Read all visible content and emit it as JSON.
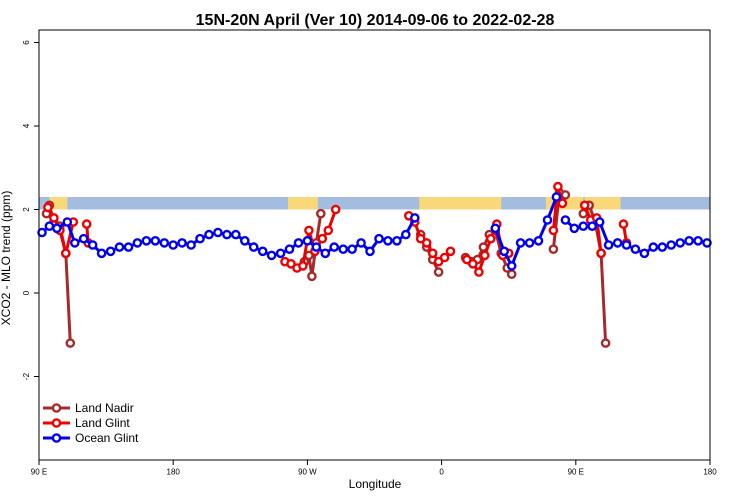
{
  "chart_data": {
    "type": "line",
    "title": "15N-20N April (Ver 10)   2014-09-06 to 2022-02-28",
    "xlabel": "Longitude",
    "ylabel": "XCO2 - MLO trend (ppm)",
    "xlim": [
      0,
      450
    ],
    "ylim": [
      -4,
      6.3
    ],
    "x_ticks": [
      {
        "value": 0,
        "label": "90 E"
      },
      {
        "value": 90,
        "label": "180"
      },
      {
        "value": 180,
        "label": "90 W"
      },
      {
        "value": 270,
        "label": "0"
      },
      {
        "value": 360,
        "label": "90 E"
      },
      {
        "value": 450,
        "label": "180"
      }
    ],
    "y_ticks": [
      {
        "value": -2,
        "label": "-2"
      },
      {
        "value": 0,
        "label": "0"
      },
      {
        "value": 2,
        "label": "2"
      },
      {
        "value": 4,
        "label": "4"
      },
      {
        "value": 6,
        "label": "6"
      }
    ],
    "map_strip": {
      "y_bottom": 2.0,
      "y_top": 2.3,
      "ocean_color": "#A4BCE0",
      "land_color": "#F8D878",
      "land_ranges": [
        [
          7,
          19
        ],
        [
          167,
          187
        ],
        [
          255,
          310
        ],
        [
          340,
          365
        ],
        [
          366,
          390
        ]
      ]
    },
    "legend": {
      "position": "bottom-left"
    },
    "series": [
      {
        "name": "Land Nadir",
        "color": "#A52A2A",
        "segments": [
          [
            [
              5,
              1.9
            ],
            [
              7,
              2.1
            ],
            [
              10,
              1.7
            ],
            [
              14,
              1.6
            ],
            [
              18,
              0.95
            ],
            [
              21,
              -1.2
            ]
          ],
          [
            [
              178,
              0.75
            ],
            [
              181,
              0.9
            ],
            [
              183,
              0.4
            ],
            [
              186,
              1.2
            ],
            [
              189,
              1.9
            ]
          ],
          [
            [
              256,
              1.4
            ],
            [
              260,
              1.1
            ],
            [
              264,
              0.8
            ],
            [
              268,
              0.5
            ]
          ],
          [
            [
              286,
              0.85
            ],
            [
              290,
              0.75
            ],
            [
              294,
              0.8
            ],
            [
              298,
              1.1
            ],
            [
              302,
              1.4
            ],
            [
              306,
              1.5
            ],
            [
              310,
              0.95
            ],
            [
              314,
              0.6
            ],
            [
              317,
              0.45
            ]
          ],
          [
            [
              345,
              1.05
            ],
            [
              349,
              2.4
            ],
            [
              353,
              2.35
            ]
          ],
          [
            [
              365,
              1.9
            ],
            [
              369,
              2.1
            ],
            [
              373,
              1.7
            ],
            [
              377,
              0.95
            ],
            [
              380,
              -1.2
            ]
          ]
        ]
      },
      {
        "name": "Land Glint",
        "color": "#EE0000",
        "segments": [
          [
            [
              6,
              2.05
            ],
            [
              10,
              1.8
            ],
            [
              14,
              1.5
            ],
            [
              18,
              0.95
            ],
            [
              23,
              1.7
            ]
          ],
          [
            [
              32,
              1.65
            ],
            [
              33,
              1.2
            ]
          ],
          [
            [
              165,
              0.75
            ],
            [
              169,
              0.7
            ],
            [
              173,
              0.6
            ],
            [
              177,
              0.65
            ],
            [
              181,
              1.5
            ],
            [
              185,
              1.0
            ],
            [
              190,
              1.3
            ],
            [
              194,
              1.5
            ],
            [
              199,
              2.0
            ]
          ],
          [
            [
              248,
              1.85
            ],
            [
              252,
              1.7
            ],
            [
              256,
              1.3
            ],
            [
              260,
              1.2
            ],
            [
              264,
              0.95
            ],
            [
              268,
              0.75
            ],
            [
              272,
              0.85
            ],
            [
              276,
              1.0
            ]
          ],
          [
            [
              287,
              0.8
            ],
            [
              291,
              0.7
            ],
            [
              295,
              0.5
            ],
            [
              299,
              0.9
            ],
            [
              303,
              1.3
            ],
            [
              307,
              1.65
            ],
            [
              311,
              0.9
            ],
            [
              315,
              0.95
            ]
          ],
          [
            [
              345,
              1.5
            ],
            [
              348,
              2.55
            ],
            [
              351,
              2.15
            ]
          ],
          [
            [
              366,
              2.1
            ],
            [
              370,
              1.75
            ],
            [
              374,
              1.8
            ],
            [
              377,
              0.95
            ]
          ],
          [
            [
              392,
              1.65
            ],
            [
              394,
              1.2
            ]
          ]
        ]
      },
      {
        "name": "Ocean Glint",
        "color": "#0000EE",
        "segments": [
          [
            [
              2,
              1.45
            ],
            [
              7,
              1.6
            ],
            [
              12,
              1.55
            ],
            [
              19,
              1.7
            ],
            [
              24,
              1.2
            ],
            [
              30,
              1.3
            ],
            [
              36,
              1.15
            ],
            [
              42,
              0.95
            ],
            [
              48,
              1.0
            ],
            [
              54,
              1.1
            ],
            [
              60,
              1.1
            ],
            [
              66,
              1.2
            ],
            [
              72,
              1.25
            ],
            [
              78,
              1.25
            ],
            [
              84,
              1.2
            ],
            [
              90,
              1.15
            ],
            [
              96,
              1.2
            ],
            [
              102,
              1.15
            ],
            [
              108,
              1.3
            ],
            [
              114,
              1.4
            ],
            [
              120,
              1.45
            ],
            [
              126,
              1.4
            ],
            [
              132,
              1.4
            ],
            [
              138,
              1.25
            ],
            [
              144,
              1.1
            ],
            [
              150,
              1.0
            ],
            [
              156,
              0.9
            ],
            [
              162,
              0.95
            ],
            [
              168,
              1.05
            ],
            [
              174,
              1.2
            ],
            [
              180,
              1.25
            ],
            [
              186,
              1.1
            ],
            [
              192,
              0.95
            ],
            [
              198,
              1.1
            ],
            [
              204,
              1.05
            ],
            [
              210,
              1.05
            ],
            [
              216,
              1.2
            ],
            [
              222,
              1.0
            ],
            [
              228,
              1.3
            ],
            [
              234,
              1.25
            ],
            [
              240,
              1.25
            ],
            [
              246,
              1.4
            ],
            [
              252,
              1.8
            ]
          ],
          [
            [
              306,
              1.55
            ],
            [
              312,
              1.0
            ],
            [
              317,
              0.65
            ],
            [
              323,
              1.2
            ],
            [
              329,
              1.2
            ],
            [
              335,
              1.25
            ],
            [
              341,
              1.75
            ],
            [
              347,
              2.3
            ]
          ],
          [
            [
              353,
              1.75
            ],
            [
              359,
              1.55
            ],
            [
              365,
              1.6
            ],
            [
              371,
              1.6
            ],
            [
              376,
              1.7
            ],
            [
              382,
              1.15
            ],
            [
              388,
              1.2
            ],
            [
              394,
              1.15
            ],
            [
              400,
              1.05
            ],
            [
              406,
              0.95
            ],
            [
              412,
              1.1
            ],
            [
              418,
              1.1
            ],
            [
              424,
              1.15
            ],
            [
              430,
              1.2
            ],
            [
              436,
              1.25
            ],
            [
              442,
              1.25
            ],
            [
              448,
              1.2
            ]
          ]
        ]
      }
    ]
  }
}
